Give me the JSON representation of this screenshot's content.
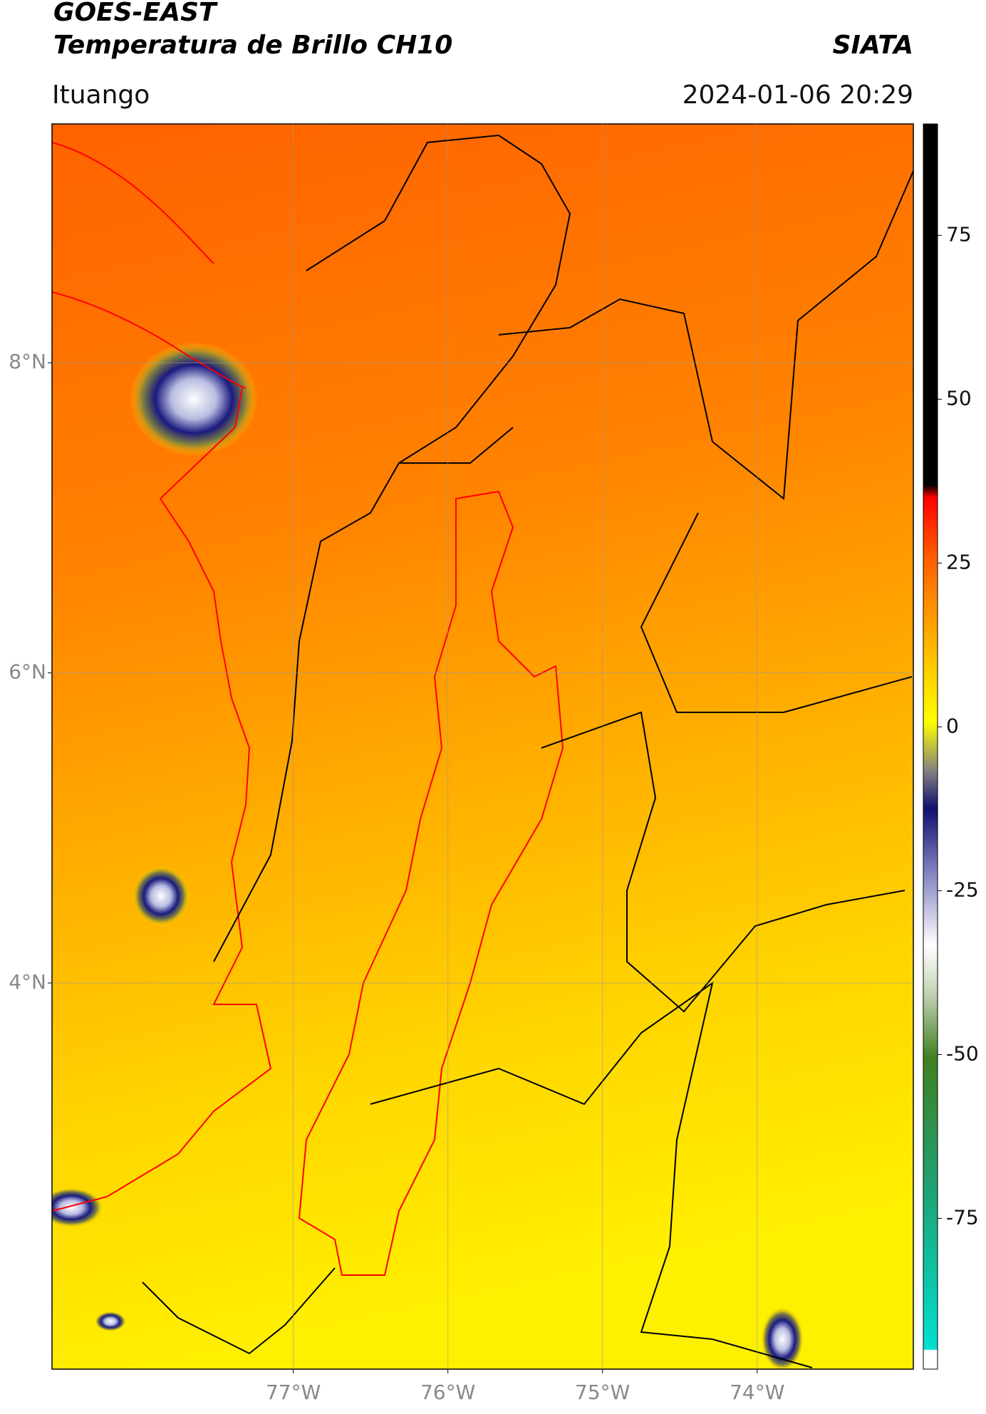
{
  "header": {
    "title": "GOES-EAST",
    "subtitle": "Temperatura de Brillo CH10",
    "source": "SIATA",
    "location": "Ituango",
    "datetime": "2024-01-06 20:29"
  },
  "map": {
    "xlim": [
      -78.56,
      -72.99
    ],
    "ylim": [
      1.51,
      9.54
    ],
    "xticks": [
      {
        "value": -77,
        "label": "77°W"
      },
      {
        "value": -76,
        "label": "76°W"
      },
      {
        "value": -75,
        "label": "75°W"
      },
      {
        "value": -74,
        "label": "74°W"
      }
    ],
    "yticks": [
      {
        "value": 8,
        "label": "8°N"
      },
      {
        "value": 6,
        "label": "6°N"
      },
      {
        "value": 4,
        "label": "4°N"
      }
    ],
    "grid": true
  },
  "colorbar": {
    "lim": [
      -98,
      92
    ],
    "ticks": [
      75,
      50,
      25,
      0,
      -25,
      -50,
      -75
    ]
  }
}
